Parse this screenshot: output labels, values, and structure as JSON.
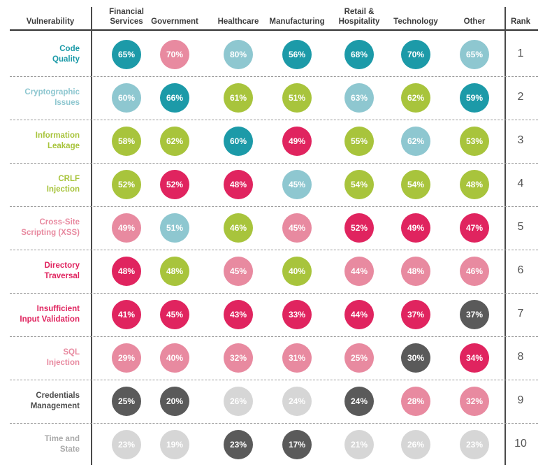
{
  "chart_data": {
    "type": "table",
    "columns": [
      "Vulnerability",
      "Financial\nServices",
      "Government",
      "Healthcare",
      "Manufacturing",
      "Retail &\nHospitality",
      "Technology",
      "Other",
      "Rank"
    ],
    "rows": [
      {
        "name": "Code\nQuality",
        "color": "teal",
        "values": [
          "65%",
          "70%",
          "80%",
          "56%",
          "68%",
          "70%",
          "65%"
        ],
        "colors": [
          "teal",
          "pink",
          "lightblue",
          "teal",
          "teal",
          "teal",
          "lightblue"
        ],
        "rank": "1"
      },
      {
        "name": "Cryptographic\nIssues",
        "color": "lightblue",
        "values": [
          "60%",
          "66%",
          "61%",
          "51%",
          "63%",
          "62%",
          "59%"
        ],
        "colors": [
          "lightblue",
          "teal",
          "green",
          "green",
          "lightblue",
          "green",
          "teal"
        ],
        "rank": "2"
      },
      {
        "name": "Information\nLeakage",
        "color": "green",
        "values": [
          "58%",
          "62%",
          "60%",
          "49%",
          "55%",
          "62%",
          "53%"
        ],
        "colors": [
          "green",
          "green",
          "teal",
          "magenta",
          "green",
          "lightblue",
          "green"
        ],
        "rank": "3"
      },
      {
        "name": "CRLF\nInjection",
        "color": "green",
        "values": [
          "52%",
          "52%",
          "48%",
          "45%",
          "54%",
          "54%",
          "48%"
        ],
        "colors": [
          "green",
          "magenta",
          "magenta",
          "lightblue",
          "green",
          "green",
          "green"
        ],
        "rank": "4"
      },
      {
        "name": "Cross-Site\nScripting (XSS)",
        "color": "pink",
        "values": [
          "49%",
          "51%",
          "46%",
          "45%",
          "52%",
          "49%",
          "47%"
        ],
        "colors": [
          "pink",
          "lightblue",
          "green",
          "pink",
          "magenta",
          "magenta",
          "magenta"
        ],
        "rank": "5"
      },
      {
        "name": "Directory\nTraversal",
        "color": "magenta",
        "values": [
          "48%",
          "48%",
          "45%",
          "40%",
          "44%",
          "48%",
          "46%"
        ],
        "colors": [
          "magenta",
          "green",
          "pink",
          "green",
          "pink",
          "pink",
          "pink"
        ],
        "rank": "6"
      },
      {
        "name": "Insufficient\nInput Validation",
        "color": "magenta",
        "values": [
          "41%",
          "45%",
          "43%",
          "33%",
          "44%",
          "37%",
          "37%"
        ],
        "colors": [
          "magenta",
          "magenta",
          "magenta",
          "magenta",
          "magenta",
          "magenta",
          "dark"
        ],
        "rank": "7"
      },
      {
        "name": "SQL\nInjection",
        "color": "pink",
        "values": [
          "29%",
          "40%",
          "32%",
          "31%",
          "25%",
          "30%",
          "34%"
        ],
        "colors": [
          "pink",
          "pink",
          "pink",
          "pink",
          "pink",
          "dark",
          "magenta"
        ],
        "rank": "8"
      },
      {
        "name": "Credentials\nManagement",
        "color": "dark",
        "values": [
          "25%",
          "20%",
          "26%",
          "24%",
          "24%",
          "28%",
          "32%"
        ],
        "colors": [
          "dark",
          "dark",
          "lightgray",
          "lightgray",
          "dark",
          "pink",
          "pink"
        ],
        "rank": "9"
      },
      {
        "name": "Time and\nState",
        "color": "lightgray",
        "values": [
          "23%",
          "19%",
          "23%",
          "17%",
          "21%",
          "26%",
          "23%"
        ],
        "colors": [
          "lightgray",
          "lightgray",
          "dark",
          "dark",
          "lightgray",
          "lightgray",
          "lightgray"
        ],
        "rank": "10"
      }
    ],
    "palette": {
      "teal": "#1c9aa8",
      "lightblue": "#8ec7d0",
      "green": "#a8c43c",
      "magenta": "#e0245f",
      "pink": "#e88aa0",
      "dark": "#5a5a5a",
      "lightgray": "#d6d6d6"
    },
    "label_colors": {
      "teal": "#1c9aa8",
      "lightblue": "#8ec7d0",
      "green": "#a8c43c",
      "magenta": "#e0245f",
      "pink": "#e88aa0",
      "dark": "#4d4d4d",
      "lightgray": "#aaaaaa"
    }
  }
}
